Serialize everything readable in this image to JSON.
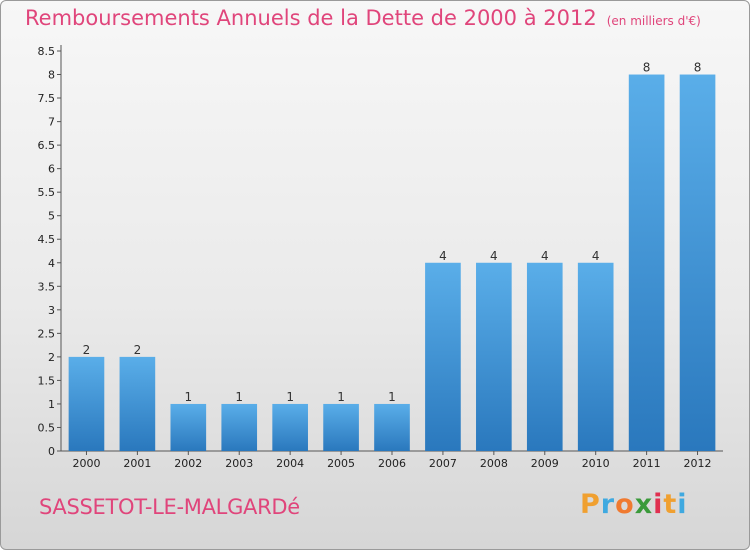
{
  "header": {
    "title": "Remboursements Annuels de la Dette de 2000 à 2012",
    "unit": "(en milliers d'€)"
  },
  "footer": {
    "commune": "SASSETOT-LE-MALGARDé",
    "brand_letters": [
      "P",
      "r",
      "o",
      "x",
      "i",
      "t",
      "i"
    ],
    "brand_colors": [
      "#f0a030",
      "#3fa9e0",
      "#f07a30",
      "#3a9a3a",
      "#e03050",
      "#f0a030",
      "#3fa9e0"
    ]
  },
  "chart_data": {
    "type": "bar",
    "title": "Remboursements Annuels de la Dette de 2000 à 2012",
    "subtitle": "(en milliers d'€)",
    "categories": [
      "2000",
      "2001",
      "2002",
      "2003",
      "2004",
      "2005",
      "2006",
      "2007",
      "2008",
      "2009",
      "2010",
      "2011",
      "2012"
    ],
    "values": [
      2,
      2,
      1,
      1,
      1,
      1,
      1,
      4,
      4,
      4,
      4,
      8,
      8
    ],
    "data_labels": [
      "2",
      "2",
      "1",
      "1",
      "1",
      "1",
      "1",
      "4",
      "4",
      "4",
      "4",
      "8",
      "8"
    ],
    "yticks": [
      "0",
      "0.5",
      "1",
      "1.5",
      "2",
      "2.5",
      "3",
      "3.5",
      "4",
      "4.5",
      "5",
      "5.5",
      "6",
      "6.5",
      "7",
      "7.5",
      "8",
      "8.5"
    ],
    "ylim": [
      0,
      8.5
    ],
    "xlabel": "",
    "ylabel": "",
    "grid": false,
    "bar_color": "#3f96d8",
    "bar_color_light": "#5aaee9",
    "bar_color_dark": "#2a78bd"
  }
}
